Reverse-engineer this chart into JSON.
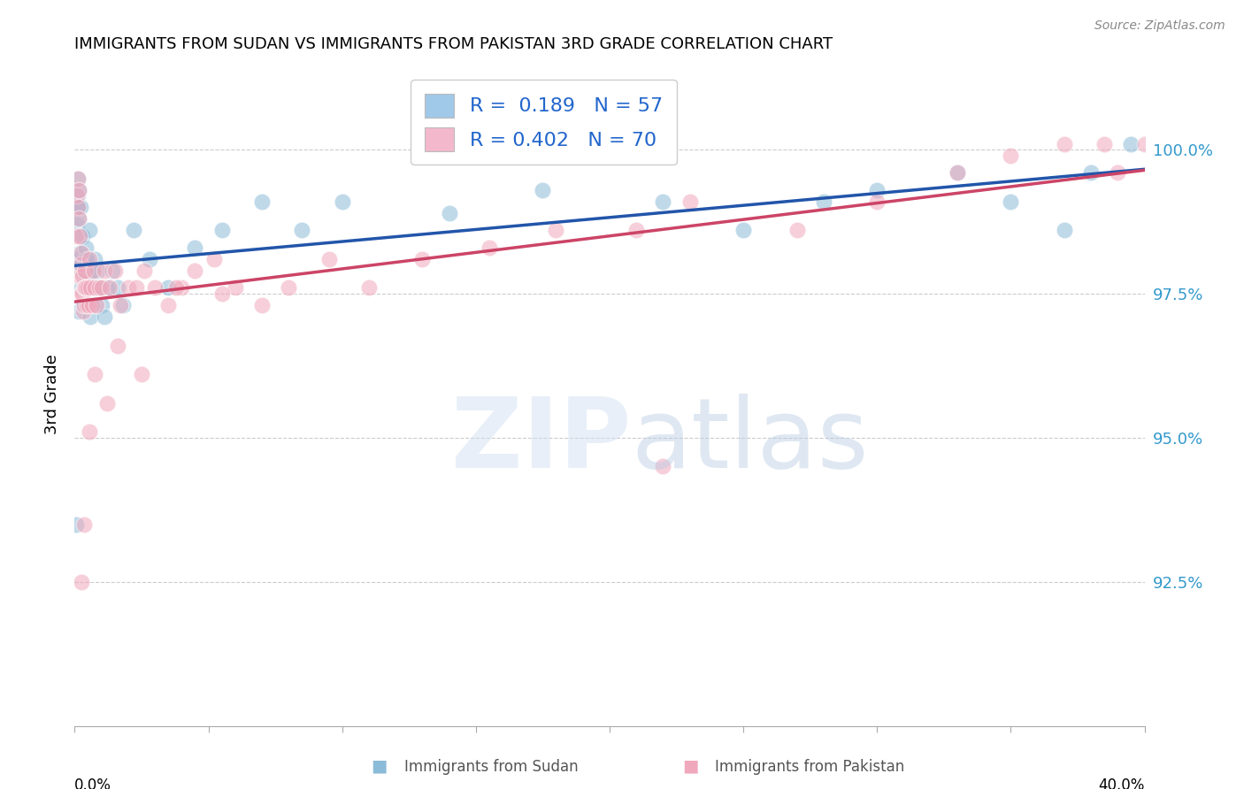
{
  "title": "IMMIGRANTS FROM SUDAN VS IMMIGRANTS FROM PAKISTAN 3RD GRADE CORRELATION CHART",
  "source": "Source: ZipAtlas.com",
  "ylabel": "3rd Grade",
  "xlim": [
    0.0,
    40.0
  ],
  "ylim": [
    90.0,
    101.5
  ],
  "yticks": [
    92.5,
    95.0,
    97.5,
    100.0
  ],
  "legend_blue_label": "R =  0.189   N = 57",
  "legend_pink_label": "R = 0.402   N = 70",
  "blue_scatter_color": "#8bbbd8",
  "pink_scatter_color": "#f0a8bc",
  "blue_line_color": "#2255aa",
  "pink_line_color": "#cc4466",
  "legend_blue_handle": "#a0c8e8",
  "legend_pink_handle": "#f4b8cc",
  "sudan_x": [
    0.05,
    0.08,
    0.1,
    0.12,
    0.13,
    0.14,
    0.15,
    0.16,
    0.17,
    0.18,
    0.19,
    0.2,
    0.22,
    0.24,
    0.25,
    0.27,
    0.3,
    0.32,
    0.35,
    0.38,
    0.4,
    0.42,
    0.45,
    0.5,
    0.55,
    0.6,
    0.65,
    0.7,
    0.75,
    0.8,
    0.85,
    0.9,
    1.0,
    1.1,
    1.2,
    1.4,
    1.6,
    1.8,
    2.2,
    2.8,
    3.5,
    4.5,
    5.5,
    7.0,
    8.5,
    10.0,
    14.0,
    17.5,
    22.0,
    25.0,
    28.0,
    30.0,
    33.0,
    35.0,
    37.0,
    38.0,
    39.5
  ],
  "sudan_y": [
    93.5,
    99.0,
    98.7,
    99.2,
    99.5,
    97.2,
    99.0,
    98.8,
    99.3,
    98.1,
    98.5,
    98.2,
    99.0,
    97.6,
    98.0,
    97.9,
    98.5,
    97.3,
    97.6,
    98.1,
    97.9,
    98.3,
    98.1,
    97.7,
    98.6,
    97.1,
    97.9,
    97.3,
    98.1,
    97.6,
    97.9,
    97.6,
    97.3,
    97.1,
    97.6,
    97.9,
    97.6,
    97.3,
    98.6,
    98.1,
    97.6,
    98.3,
    98.6,
    99.1,
    98.6,
    99.1,
    98.9,
    99.3,
    99.1,
    98.6,
    99.1,
    99.3,
    99.6,
    99.1,
    98.6,
    99.6,
    100.1
  ],
  "pakistan_x": [
    0.06,
    0.09,
    0.11,
    0.13,
    0.15,
    0.16,
    0.18,
    0.2,
    0.22,
    0.24,
    0.26,
    0.28,
    0.3,
    0.32,
    0.34,
    0.36,
    0.38,
    0.4,
    0.42,
    0.45,
    0.48,
    0.52,
    0.55,
    0.6,
    0.65,
    0.7,
    0.75,
    0.8,
    0.9,
    1.0,
    1.1,
    1.3,
    1.5,
    1.7,
    2.0,
    2.3,
    2.6,
    3.0,
    3.5,
    4.0,
    4.5,
    5.2,
    6.0,
    7.0,
    8.0,
    9.5,
    11.0,
    13.0,
    15.5,
    18.0,
    21.0,
    23.0,
    27.0,
    30.0,
    33.0,
    35.0,
    37.0,
    38.5,
    39.0,
    40.0,
    22.0,
    0.25,
    0.35,
    0.55,
    0.75,
    1.2,
    1.6,
    2.5,
    3.8,
    5.5
  ],
  "pakistan_y": [
    98.5,
    99.2,
    99.0,
    99.5,
    98.8,
    99.3,
    98.5,
    97.8,
    98.0,
    97.5,
    98.2,
    97.5,
    97.8,
    97.2,
    97.6,
    97.3,
    97.6,
    97.9,
    97.6,
    97.3,
    97.6,
    97.3,
    98.1,
    97.6,
    97.3,
    97.9,
    97.6,
    97.3,
    97.6,
    97.6,
    97.9,
    97.6,
    97.9,
    97.3,
    97.6,
    97.6,
    97.9,
    97.6,
    97.3,
    97.6,
    97.9,
    98.1,
    97.6,
    97.3,
    97.6,
    98.1,
    97.6,
    98.1,
    98.3,
    98.6,
    98.6,
    99.1,
    98.6,
    99.1,
    99.6,
    99.9,
    100.1,
    100.1,
    99.6,
    100.1,
    94.5,
    92.5,
    93.5,
    95.1,
    96.1,
    95.6,
    96.6,
    96.1,
    97.6,
    97.5
  ]
}
